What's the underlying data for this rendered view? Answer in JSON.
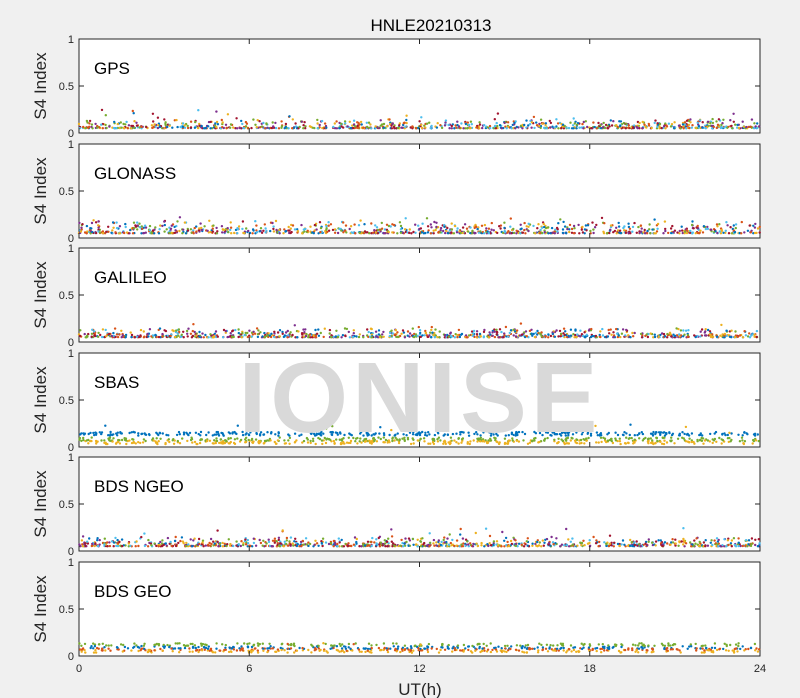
{
  "colors": {
    "accent": "#0072bd",
    "series_palette": [
      "#0072bd",
      "#d95319",
      "#edb120",
      "#7e2f8e",
      "#77ac30",
      "#4dbeee",
      "#a2142f"
    ]
  },
  "chart_data": {
    "type": "scatter",
    "title": "HNLE20210313",
    "xlabel": "UT(h)",
    "ylabel": "S4 Index",
    "xlim": [
      0,
      24
    ],
    "ylim": [
      0,
      1
    ],
    "xticks": [
      0,
      6,
      12,
      18,
      24
    ],
    "yticks": [
      0,
      0.5,
      1
    ],
    "grid": false,
    "watermark": "IONISE",
    "panels": [
      {
        "label": "GPS",
        "typical_s4": [
          0.05,
          0.15
        ],
        "max_s4": 0.25
      },
      {
        "label": "GLONASS",
        "typical_s4": [
          0.05,
          0.18
        ],
        "max_s4": 0.22
      },
      {
        "label": "GALILEO",
        "typical_s4": [
          0.05,
          0.15
        ],
        "max_s4": 0.2
      },
      {
        "label": "SBAS",
        "typical_s4": [
          0.05,
          0.15
        ],
        "max_s4": 0.25
      },
      {
        "label": "BDS NGEO",
        "typical_s4": [
          0.05,
          0.15
        ],
        "max_s4": 0.25
      },
      {
        "label": "BDS GEO",
        "typical_s4": [
          0.05,
          0.12
        ],
        "max_s4": 0.14
      }
    ]
  }
}
